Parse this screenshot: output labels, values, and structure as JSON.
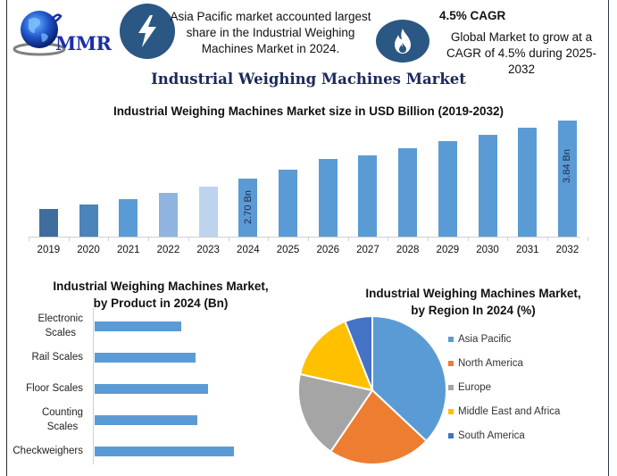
{
  "header": {
    "logo_text": "MMR",
    "highlight_1": {
      "icon": "lightning-icon",
      "lines": [
        "Asia Pacific market accounted largest",
        "share in the Industrial Weighing",
        "Machines Market in 2024."
      ]
    },
    "highlight_2": {
      "icon": "flame-icon",
      "title": "4.5% CAGR",
      "lines": [
        "Global Market to grow at a",
        "CAGR of 4.5% during 2025-2032"
      ]
    }
  },
  "main_title": "Industrial Weighing Machines Market",
  "colors": {
    "bar_primary": "#5b9bd5",
    "icon_bg": "#2a5783",
    "title_navy": "#1b2a5a",
    "asia_pacific": "#5b9bd5",
    "north_america": "#ed7d31",
    "europe": "#a5a5a5",
    "mea": "#ffc000",
    "south_america": "#4472c4"
  },
  "chart_data": [
    {
      "type": "bar",
      "title": "Industrial Weighing Machines Market size in USD Billion (2019-2032)",
      "xlabel": "",
      "ylabel": "USD Billion",
      "categories": [
        "2019",
        "2020",
        "2021",
        "2022",
        "2023",
        "2024",
        "2025",
        "2026",
        "2027",
        "2028",
        "2029",
        "2030",
        "2031",
        "2032"
      ],
      "values": [
        2.1,
        2.19,
        2.3,
        2.42,
        2.54,
        2.7,
        2.88,
        3.09,
        3.16,
        3.3,
        3.44,
        3.56,
        3.7,
        3.84
      ],
      "bar_colors": [
        "#3f6d9e",
        "#4a84bb",
        "#5b9bd5",
        "#8fb4e0",
        "#bdd3ee",
        "#5b9bd5",
        "#5b9bd5",
        "#5b9bd5",
        "#5b9bd5",
        "#5b9bd5",
        "#5b9bd5",
        "#5b9bd5",
        "#5b9bd5",
        "#5b9bd5"
      ],
      "data_labels": {
        "2024": "2.70 Bn",
        "2032": "3.84 Bn"
      },
      "grid": false,
      "y_axis_visible": false
    },
    {
      "type": "bar",
      "orientation": "horizontal",
      "title": "Industrial Weighing Machines Market, by Product in 2024 (Bn)",
      "categories": [
        "Electronic Scales",
        "Rail Scales",
        "Floor Scales",
        "Counting Scales",
        "Checkweighers"
      ],
      "values": [
        0.43,
        0.5,
        0.56,
        0.51,
        0.69
      ],
      "grid": false
    },
    {
      "type": "pie",
      "title": "Industrial Weighing Machines Market, by Region In 2024 (%)",
      "categories": [
        "Asia Pacific",
        "North America",
        "Europe",
        "Middle East and Africa",
        "South America"
      ],
      "values": [
        37,
        22.5,
        19,
        15.5,
        6
      ],
      "legend_position": "right"
    }
  ],
  "bar_chart": {
    "title": "Industrial Weighing Machines Market size in USD Billion (2019-2032)",
    "years": [
      "2019",
      "2020",
      "2021",
      "2022",
      "2023",
      "2024",
      "2025",
      "2026",
      "2027",
      "2028",
      "2029",
      "2030",
      "2031",
      "2032"
    ],
    "label_2024": "2.70 Bn",
    "label_2032": "3.84 Bn"
  },
  "product_chart": {
    "title_line1": "Industrial Weighing Machines Market,",
    "title_line2": "by Product in 2024 (Bn)",
    "labels": [
      [
        "Electronic",
        "Scales"
      ],
      [
        "Rail Scales"
      ],
      [
        "Floor Scales"
      ],
      [
        "Counting",
        "Scales"
      ],
      [
        "Checkweighers"
      ]
    ]
  },
  "region_chart": {
    "title_line1": "Industrial Weighing Machines Market,",
    "title_line2": "by Region In 2024 (%)",
    "legend": [
      "Asia Pacific",
      "North America",
      "Europe",
      "Middle East and Africa",
      "South America"
    ]
  }
}
